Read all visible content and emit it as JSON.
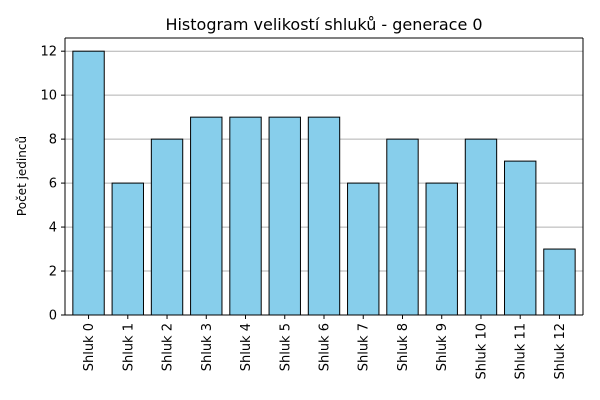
{
  "chart_data": {
    "type": "bar",
    "title": "Histogram velikostí shluků - generace 0",
    "xlabel": "",
    "ylabel": "Počet jedinců",
    "categories": [
      "Shluk 0",
      "Shluk 1",
      "Shluk 2",
      "Shluk 3",
      "Shluk 4",
      "Shluk 5",
      "Shluk 6",
      "Shluk 7",
      "Shluk 8",
      "Shluk 9",
      "Shluk 10",
      "Shluk 11",
      "Shluk 12"
    ],
    "values": [
      12,
      6,
      8,
      9,
      9,
      9,
      9,
      6,
      8,
      6,
      8,
      7,
      3
    ],
    "ylim": [
      0,
      12.6
    ],
    "yticks": [
      0,
      2,
      4,
      6,
      8,
      10,
      12
    ],
    "grid": "y",
    "bar_color": "#87ceeb",
    "edge_color": "#000000"
  }
}
